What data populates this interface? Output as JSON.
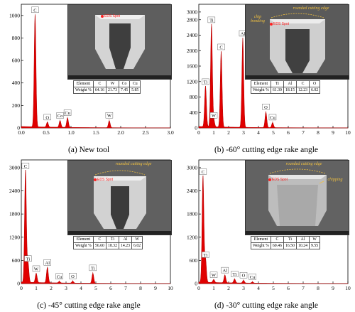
{
  "panels": [
    {
      "caption": "(a) New tool",
      "spot_label": "EDS Spot",
      "annotations": [],
      "table": {
        "header": [
          "Element",
          "C",
          "W",
          "Co",
          "Cu"
        ],
        "row_label": "Weight %",
        "values": [
          "64.16",
          "21.73",
          "7.45",
          "5.85"
        ]
      }
    },
    {
      "caption": "(b) -60° cutting edge rake angle",
      "spot_label": "EDS Spot",
      "annotations": [
        "rounded cutting edge",
        "chip bonding"
      ],
      "table": {
        "header": [
          "Element",
          "Ti",
          "Al",
          "C",
          "O"
        ],
        "row_label": "Weight %",
        "values": [
          "61.30",
          "18.15",
          "12.23",
          "6.02"
        ]
      }
    },
    {
      "caption": "(c) -45° cutting edge rake angle",
      "spot_label": "EDS Spot",
      "annotations": [
        "rounded cutting edge"
      ],
      "table": {
        "header": [
          "Element",
          "C",
          "Ti",
          "Al",
          "W"
        ],
        "row_label": "Weight %",
        "values": [
          "56.60",
          "18.32",
          "14.23",
          "6.02"
        ]
      }
    },
    {
      "caption": "(d) -30° cutting edge rake angle",
      "spot_label": "EDS Spot",
      "annotations": [
        "rounded cutting edge",
        "chipping"
      ],
      "table": {
        "header": [
          "Element",
          "C",
          "Ti",
          "Al",
          "W"
        ],
        "row_label": "Weight %",
        "values": [
          "60.46",
          "16.50",
          "10.24",
          "9.55"
        ]
      }
    }
  ],
  "colors": {
    "spectrum_fill": "#e00000",
    "spectrum_stroke": "#b00000",
    "sem_bg": "#6b6b6b"
  },
  "chart_data": [
    {
      "type": "area",
      "title": "",
      "xlim": [
        0,
        3.0
      ],
      "x_ticks": [
        "0.0",
        "0.5",
        "1.0",
        "1.5",
        "2.0",
        "2.5",
        "3.0"
      ],
      "ylim": [
        0,
        1100
      ],
      "y_ticks": [
        "0",
        "200",
        "400",
        "600",
        "800",
        "1000"
      ],
      "peaks": [
        {
          "label": "C",
          "x": 0.277,
          "y": 1000
        },
        {
          "label": "O",
          "x": 0.525,
          "y": 45
        },
        {
          "label": "Co",
          "x": 0.78,
          "y": 60
        },
        {
          "label": "Cu",
          "x": 0.93,
          "y": 85
        },
        {
          "label": "W",
          "x": 1.77,
          "y": 62
        }
      ]
    },
    {
      "type": "area",
      "title": "",
      "xlim": [
        0,
        10
      ],
      "x_ticks": [
        "0",
        "1",
        "2",
        "3",
        "4",
        "5",
        "6",
        "7",
        "8",
        "9",
        "10"
      ],
      "ylim": [
        0,
        3200
      ],
      "y_ticks": [
        "0",
        "400",
        "800",
        "1200",
        "1600",
        "2000",
        "2400",
        "2800",
        "3000"
      ],
      "peaks": [
        {
          "label": "Ti",
          "x": 0.45,
          "y": 1050
        },
        {
          "label": "Ti",
          "x": 0.85,
          "y": 2650
        },
        {
          "label": "W",
          "x": 1.0,
          "y": 180
        },
        {
          "label": "C",
          "x": 1.5,
          "y": 1950
        },
        {
          "label": "Al",
          "x": 2.95,
          "y": 2300
        },
        {
          "label": "O",
          "x": 4.5,
          "y": 400
        },
        {
          "label": "Cu",
          "x": 4.95,
          "y": 130
        }
      ]
    },
    {
      "type": "area",
      "title": "",
      "xlim": [
        0,
        10
      ],
      "x_ticks": [
        "0",
        "1",
        "2",
        "3",
        "4",
        "5",
        "6",
        "7",
        "8",
        "9",
        "10"
      ],
      "ylim": [
        0,
        3200
      ],
      "y_ticks": [
        "0",
        "600",
        "1200",
        "1800",
        "2400",
        "3000"
      ],
      "peaks": [
        {
          "label": "C",
          "x": 0.28,
          "y": 2900
        },
        {
          "label": "Ti",
          "x": 0.45,
          "y": 500
        },
        {
          "label": "W",
          "x": 1.0,
          "y": 240
        },
        {
          "label": "Al",
          "x": 1.75,
          "y": 400
        },
        {
          "label": "Cu",
          "x": 2.55,
          "y": 40
        },
        {
          "label": "O",
          "x": 3.45,
          "y": 50
        },
        {
          "label": "Ti",
          "x": 4.8,
          "y": 260
        }
      ]
    },
    {
      "type": "area",
      "title": "",
      "xlim": [
        0,
        10
      ],
      "x_ticks": [
        "0",
        "1",
        "2",
        "3",
        "4",
        "5",
        "6",
        "7",
        "8",
        "9",
        "10"
      ],
      "ylim": [
        0,
        3200
      ],
      "y_ticks": [
        "0",
        "600",
        "1200",
        "1800",
        "2400",
        "3000"
      ],
      "peaks": [
        {
          "label": "C",
          "x": 0.28,
          "y": 2750
        },
        {
          "label": "Ti",
          "x": 0.45,
          "y": 600
        },
        {
          "label": "W",
          "x": 1.0,
          "y": 80
        },
        {
          "label": "Al",
          "x": 1.75,
          "y": 200
        },
        {
          "label": "Ti",
          "x": 2.4,
          "y": 100
        },
        {
          "label": "O",
          "x": 3.0,
          "y": 70
        },
        {
          "label": "Cu",
          "x": 3.6,
          "y": 30
        }
      ]
    }
  ]
}
